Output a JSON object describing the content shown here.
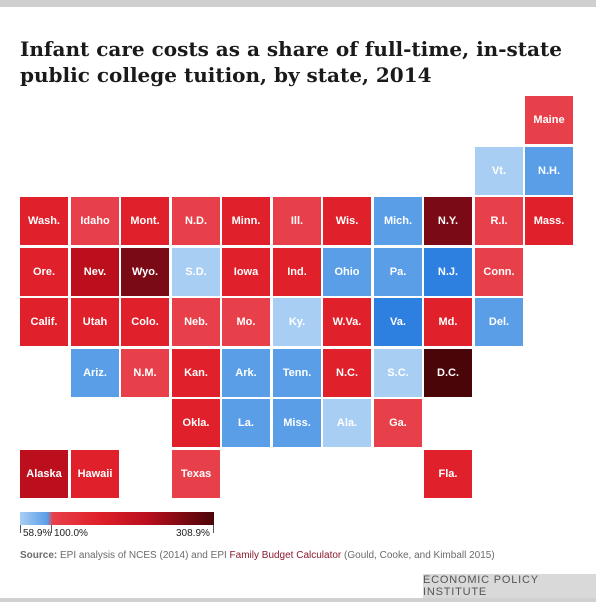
{
  "title": "Infant care costs as a share of full-time, in-state public college tuition, by state, 2014",
  "colors": {
    "light_blue": "#a9cef4",
    "mid_blue": "#5a9ee8",
    "blue": "#2d7fe0",
    "red_light": "#e8404a",
    "red": "#e0202a",
    "red_dark": "#bb0f1e",
    "maroon": "#7a0a16",
    "darkest": "#4a0508"
  },
  "chart_data": {
    "type": "tile-map",
    "title": "Infant care costs as a share of full-time, in-state public college tuition, by state, 2014",
    "legend": {
      "min_label": "58.9%",
      "mid_label": "100.0%",
      "max_label": "308.9%",
      "min": 58.9,
      "mid": 100.0,
      "max": 308.9
    },
    "states": [
      {
        "label": "Maine",
        "row": 0,
        "col": 10,
        "color": "red_light"
      },
      {
        "label": "Vt.",
        "row": 1,
        "col": 9,
        "color": "light_blue"
      },
      {
        "label": "N.H.",
        "row": 1,
        "col": 10,
        "color": "mid_blue"
      },
      {
        "label": "Wash.",
        "row": 2,
        "col": 0,
        "color": "red"
      },
      {
        "label": "Idaho",
        "row": 2,
        "col": 1,
        "color": "red_light"
      },
      {
        "label": "Mont.",
        "row": 2,
        "col": 2,
        "color": "red"
      },
      {
        "label": "N.D.",
        "row": 2,
        "col": 3,
        "color": "red_light"
      },
      {
        "label": "Minn.",
        "row": 2,
        "col": 4,
        "color": "red"
      },
      {
        "label": "Ill.",
        "row": 2,
        "col": 5,
        "color": "red_light"
      },
      {
        "label": "Wis.",
        "row": 2,
        "col": 6,
        "color": "red"
      },
      {
        "label": "Mich.",
        "row": 2,
        "col": 7,
        "color": "mid_blue"
      },
      {
        "label": "N.Y.",
        "row": 2,
        "col": 8,
        "color": "maroon"
      },
      {
        "label": "R.I.",
        "row": 2,
        "col": 9,
        "color": "red_light"
      },
      {
        "label": "Mass.",
        "row": 2,
        "col": 10,
        "color": "red"
      },
      {
        "label": "Ore.",
        "row": 3,
        "col": 0,
        "color": "red"
      },
      {
        "label": "Nev.",
        "row": 3,
        "col": 1,
        "color": "red_dark"
      },
      {
        "label": "Wyo.",
        "row": 3,
        "col": 2,
        "color": "maroon"
      },
      {
        "label": "S.D.",
        "row": 3,
        "col": 3,
        "color": "light_blue"
      },
      {
        "label": "Iowa",
        "row": 3,
        "col": 4,
        "color": "red"
      },
      {
        "label": "Ind.",
        "row": 3,
        "col": 5,
        "color": "red"
      },
      {
        "label": "Ohio",
        "row": 3,
        "col": 6,
        "color": "mid_blue"
      },
      {
        "label": "Pa.",
        "row": 3,
        "col": 7,
        "color": "mid_blue"
      },
      {
        "label": "N.J.",
        "row": 3,
        "col": 8,
        "color": "blue"
      },
      {
        "label": "Conn.",
        "row": 3,
        "col": 9,
        "color": "red_light"
      },
      {
        "label": "Calif.",
        "row": 4,
        "col": 0,
        "color": "red"
      },
      {
        "label": "Utah",
        "row": 4,
        "col": 1,
        "color": "red"
      },
      {
        "label": "Colo.",
        "row": 4,
        "col": 2,
        "color": "red"
      },
      {
        "label": "Neb.",
        "row": 4,
        "col": 3,
        "color": "red_light"
      },
      {
        "label": "Mo.",
        "row": 4,
        "col": 4,
        "color": "red_light"
      },
      {
        "label": "Ky.",
        "row": 4,
        "col": 5,
        "color": "light_blue"
      },
      {
        "label": "W.Va.",
        "row": 4,
        "col": 6,
        "color": "red"
      },
      {
        "label": "Va.",
        "row": 4,
        "col": 7,
        "color": "blue"
      },
      {
        "label": "Md.",
        "row": 4,
        "col": 8,
        "color": "red"
      },
      {
        "label": "Del.",
        "row": 4,
        "col": 9,
        "color": "mid_blue"
      },
      {
        "label": "Ariz.",
        "row": 5,
        "col": 1,
        "color": "mid_blue"
      },
      {
        "label": "N.M.",
        "row": 5,
        "col": 2,
        "color": "red_light"
      },
      {
        "label": "Kan.",
        "row": 5,
        "col": 3,
        "color": "red"
      },
      {
        "label": "Ark.",
        "row": 5,
        "col": 4,
        "color": "mid_blue"
      },
      {
        "label": "Tenn.",
        "row": 5,
        "col": 5,
        "color": "mid_blue"
      },
      {
        "label": "N.C.",
        "row": 5,
        "col": 6,
        "color": "red"
      },
      {
        "label": "S.C.",
        "row": 5,
        "col": 7,
        "color": "light_blue"
      },
      {
        "label": "D.C.",
        "row": 5,
        "col": 8,
        "color": "darkest"
      },
      {
        "label": "Okla.",
        "row": 6,
        "col": 3,
        "color": "red"
      },
      {
        "label": "La.",
        "row": 6,
        "col": 4,
        "color": "mid_blue"
      },
      {
        "label": "Miss.",
        "row": 6,
        "col": 5,
        "color": "mid_blue"
      },
      {
        "label": "Ala.",
        "row": 6,
        "col": 6,
        "color": "light_blue"
      },
      {
        "label": "Ga.",
        "row": 6,
        "col": 7,
        "color": "red_light"
      },
      {
        "label": "Alaska",
        "row": 7,
        "col": 0,
        "color": "red_dark"
      },
      {
        "label": "Hawaii",
        "row": 7,
        "col": 1,
        "color": "red"
      },
      {
        "label": "Texas",
        "row": 7,
        "col": 3,
        "color": "red_light"
      },
      {
        "label": "Fla.",
        "row": 7,
        "col": 8,
        "color": "red"
      }
    ]
  },
  "source": {
    "lead": "Source:",
    "text_a": " EPI analysis of NCES (2014) and EPI ",
    "link": "Family Budget Calculator",
    "text_b": " (Gould, Cooke, and Kimball 2015)"
  },
  "org": "ECONOMIC POLICY INSTITUTE"
}
